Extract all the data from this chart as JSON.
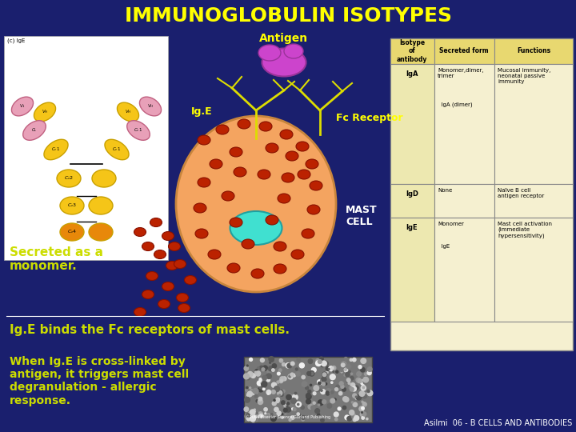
{
  "title": "IMMUNOGLOBULIN ISOTYPES",
  "title_color": "#FFFF00",
  "title_fontsize": 18,
  "bg_color": "#1A1F6E",
  "text_antigen": "Antigen",
  "text_antigen_color": "#FFFF00",
  "text_igE": "Ig.E",
  "text_igE_color": "#FFFF00",
  "text_fc": "Fc Receptor",
  "text_fc_color": "#FFFF00",
  "text_mast": "MAST\nCELL",
  "text_mast_color": "white",
  "text_secreted": "Secreted as a\nmonomer.",
  "text_secreted_color": "#CCDD00",
  "text_binds": "Ig.E binds the Fc receptors of mast cells.",
  "text_binds_color": "#CCDD00",
  "text_when": "When Ig.E is cross-linked by\nantigen, it triggers mast cell\ndegranulation - allergic\nresponse.",
  "text_when_color": "#CCDD00",
  "text_footer": "Asilmi  06 - B CELLS AND ANTIBODIES",
  "text_footer_color": "white",
  "mast_cell_color": "#F4A460",
  "mast_cell_nucleus_color": "#40E0D0",
  "antigen_color": "#CC44CC",
  "granule_color": "#BB2200",
  "table_bg": "#F5F0D0",
  "table_header_bg": "#E8D870",
  "table_row1_bg": "#EDE8B0",
  "table_border": "#888888",
  "ab_yellow": "#F5C518",
  "ab_yellow_edge": "#C8A000",
  "ab_pink": "#E8A0B8",
  "ab_pink_edge": "#C06080",
  "ab_orange": "#E8880A",
  "ige_line_color": "#DDDD00"
}
